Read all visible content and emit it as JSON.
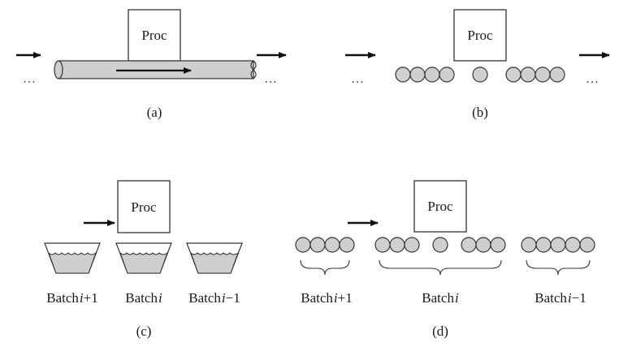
{
  "panels": {
    "a": {
      "caption": "(a)",
      "proc_label": "Proc",
      "ellipsis_left": "…",
      "ellipsis_right": "…"
    },
    "b": {
      "caption": "(b)",
      "proc_label": "Proc",
      "ellipsis_left": "…",
      "ellipsis_right": "…"
    },
    "c": {
      "caption": "(c)",
      "proc_label": "Proc",
      "batches": [
        {
          "word": "Batch",
          "index": "i",
          "suffix": "+1"
        },
        {
          "word": "Batch",
          "index": "i",
          "suffix": ""
        },
        {
          "word": "Batch",
          "index": "i",
          "suffix": "−1"
        }
      ]
    },
    "d": {
      "caption": "(d)",
      "proc_label": "Proc",
      "batches": [
        {
          "word": "Batch",
          "index": "i",
          "suffix": "+1"
        },
        {
          "word": "Batch",
          "index": "i",
          "suffix": ""
        },
        {
          "word": "Batch",
          "index": "i",
          "suffix": "−1"
        }
      ]
    }
  },
  "colors": {
    "item_fill": "#cfcfcf",
    "stroke": "#333333",
    "arrow": "#111111"
  }
}
